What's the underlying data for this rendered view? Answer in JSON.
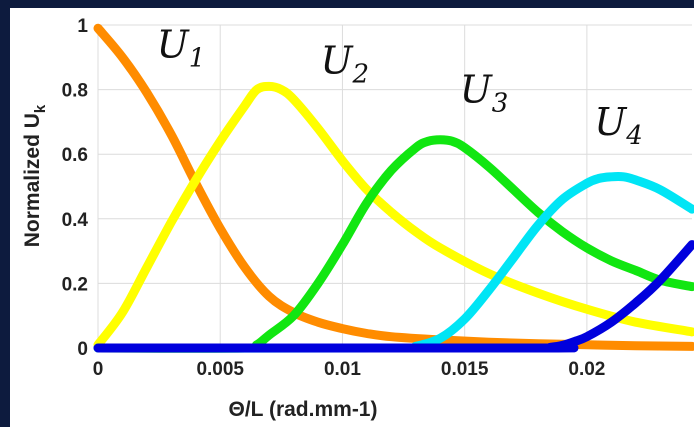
{
  "chart_data": {
    "type": "line",
    "title": "",
    "xlabel": "Θ/L (rad.mm-1)",
    "ylabel": "Normalized U",
    "ylabel_subscript": "k",
    "xlim": [
      0,
      0.0243
    ],
    "ylim": [
      0,
      1
    ],
    "xticks": [
      0,
      0.005,
      0.01,
      0.015,
      0.02
    ],
    "xtick_labels": [
      "0",
      "0.005",
      "0.01",
      "0.015",
      "0.02"
    ],
    "yticks": [
      0,
      0.2,
      0.4,
      0.6,
      0.8,
      1
    ],
    "ytick_labels": [
      "0",
      "0.2",
      "0.4",
      "0.6",
      "0.8",
      "1"
    ],
    "grid": true,
    "legend": "none",
    "series": [
      {
        "label_main": "U",
        "label_sub": "1",
        "color": "#ff8c00",
        "label_x": 0.0024,
        "label_y": 0.9,
        "x": [
          0,
          0.001,
          0.002,
          0.003,
          0.004,
          0.005,
          0.006,
          0.007,
          0.008,
          0.009,
          0.01,
          0.011,
          0.012,
          0.014,
          0.016,
          0.018,
          0.02,
          0.022,
          0.0243
        ],
        "y": [
          0.99,
          0.9,
          0.79,
          0.66,
          0.51,
          0.37,
          0.25,
          0.16,
          0.11,
          0.08,
          0.06,
          0.045,
          0.035,
          0.025,
          0.018,
          0.013,
          0.01,
          0.007,
          0.005
        ]
      },
      {
        "label_main": "U",
        "label_sub": "2",
        "color": "#ffff00",
        "label_x": 0.0091,
        "label_y": 0.85,
        "x": [
          0,
          0.001,
          0.002,
          0.003,
          0.004,
          0.005,
          0.006,
          0.0065,
          0.007,
          0.0075,
          0.008,
          0.009,
          0.01,
          0.011,
          0.012,
          0.013,
          0.014,
          0.016,
          0.018,
          0.02,
          0.022,
          0.0243
        ],
        "y": [
          0.01,
          0.11,
          0.25,
          0.39,
          0.52,
          0.64,
          0.75,
          0.8,
          0.81,
          0.8,
          0.77,
          0.68,
          0.58,
          0.49,
          0.42,
          0.36,
          0.31,
          0.23,
          0.17,
          0.12,
          0.08,
          0.05
        ]
      },
      {
        "label_main": "U",
        "label_sub": "3",
        "color": "#11e611",
        "label_x": 0.0148,
        "label_y": 0.76,
        "x": [
          0,
          0.006,
          0.0065,
          0.007,
          0.008,
          0.009,
          0.01,
          0.011,
          0.012,
          0.013,
          0.0135,
          0.014,
          0.0145,
          0.015,
          0.016,
          0.017,
          0.018,
          0.019,
          0.02,
          0.021,
          0.022,
          0.023,
          0.0243
        ],
        "y": [
          0,
          0,
          0.01,
          0.04,
          0.1,
          0.2,
          0.32,
          0.45,
          0.55,
          0.62,
          0.64,
          0.645,
          0.64,
          0.62,
          0.56,
          0.49,
          0.42,
          0.36,
          0.31,
          0.27,
          0.24,
          0.21,
          0.19
        ]
      },
      {
        "label_main": "U",
        "label_sub": "4",
        "color": "#00e5f5",
        "label_x": 0.0203,
        "label_y": 0.66,
        "x": [
          0,
          0.0125,
          0.013,
          0.014,
          0.015,
          0.016,
          0.017,
          0.018,
          0.019,
          0.02,
          0.0205,
          0.021,
          0.0215,
          0.022,
          0.023,
          0.0243
        ],
        "y": [
          0,
          0,
          0.005,
          0.03,
          0.09,
          0.18,
          0.28,
          0.38,
          0.46,
          0.51,
          0.525,
          0.53,
          0.53,
          0.52,
          0.49,
          0.43
        ]
      },
      {
        "label_main": "",
        "label_sub": "",
        "color": "#0000dd",
        "x": [
          0,
          0.018,
          0.0185,
          0.019,
          0.0195,
          0.02,
          0.021,
          0.022,
          0.023,
          0.0243
        ],
        "y": [
          0,
          0,
          0.002,
          0.008,
          0.02,
          0.035,
          0.08,
          0.14,
          0.21,
          0.32
        ]
      }
    ]
  }
}
